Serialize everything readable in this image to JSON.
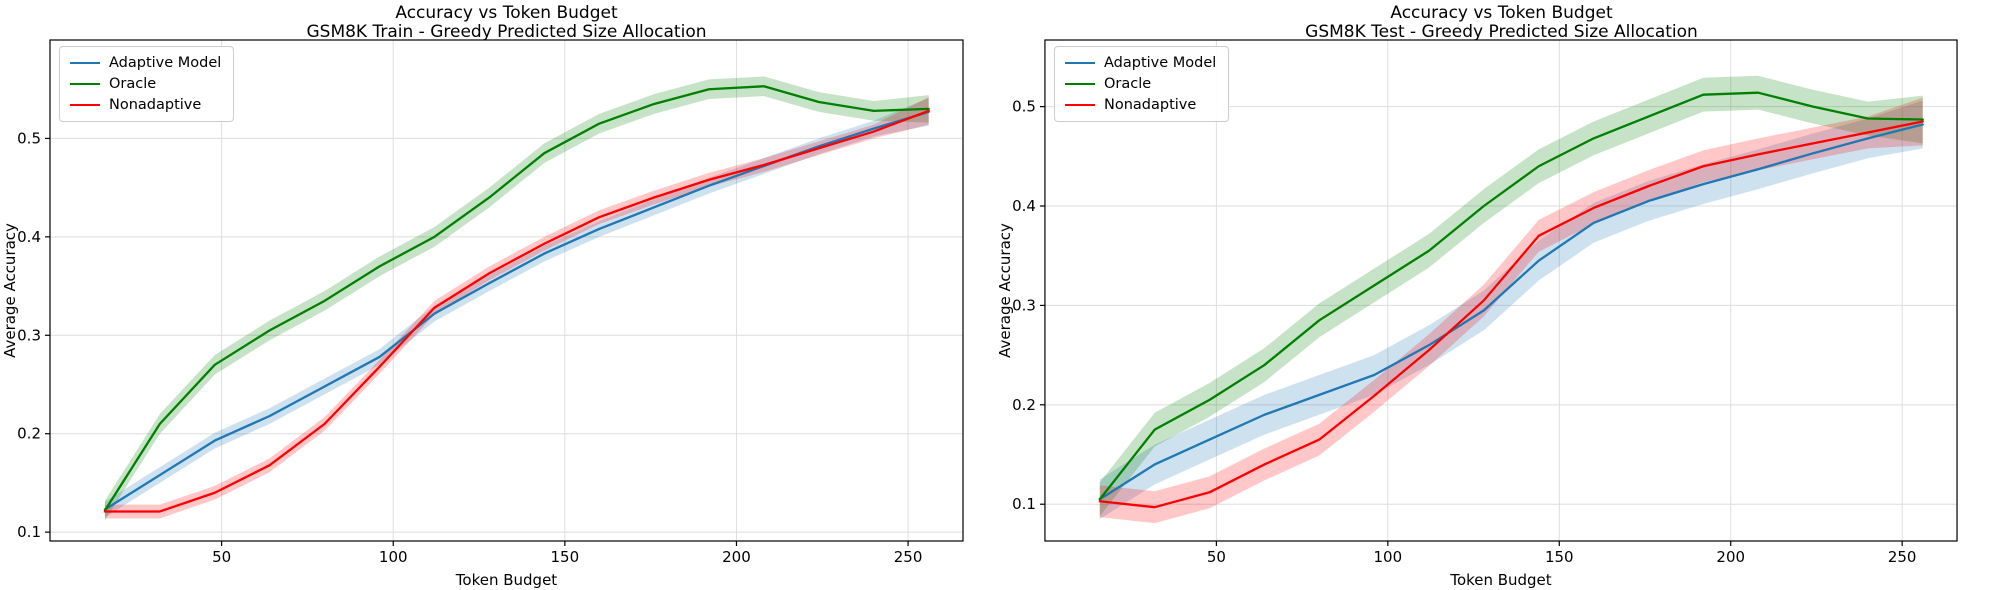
{
  "figure": {
    "background": "#ffffff",
    "grid_color": "#dedede",
    "spine_color": "#000000",
    "text_color": "#000000"
  },
  "chart_data": [
    {
      "type": "line",
      "title": "Accuracy vs Token Budget",
      "subtitle": "GSM8K Train - Greedy Predicted Size Allocation",
      "xlabel": "Token Budget",
      "ylabel": "Average Accuracy",
      "x": [
        16,
        32,
        48,
        64,
        80,
        96,
        112,
        128,
        144,
        160,
        176,
        192,
        208,
        224,
        240,
        256
      ],
      "xticks": [
        50,
        100,
        150,
        200,
        250
      ],
      "yticks": [
        0.1,
        0.2,
        0.3,
        0.4,
        0.5
      ],
      "xlim": [
        0,
        266
      ],
      "ylim": [
        0.091,
        0.6
      ],
      "grid": true,
      "legend_position": "upper-left",
      "series": [
        {
          "name": "Adaptive Model",
          "color": "#1f77b4",
          "band_halfwidth": 0.008,
          "band_end_halfwidth": 0.014,
          "values": [
            0.123,
            0.158,
            0.193,
            0.218,
            0.248,
            0.278,
            0.322,
            0.353,
            0.383,
            0.408,
            0.43,
            0.452,
            0.472,
            0.492,
            0.51,
            0.527
          ]
        },
        {
          "name": "Oracle",
          "color": "#008000",
          "band_halfwidth": 0.01,
          "band_end_halfwidth": 0.014,
          "values": [
            0.122,
            0.21,
            0.27,
            0.305,
            0.335,
            0.37,
            0.4,
            0.44,
            0.485,
            0.515,
            0.535,
            0.55,
            0.553,
            0.537,
            0.528,
            0.53
          ]
        },
        {
          "name": "Nonadaptive",
          "color": "#ff0000",
          "band_halfwidth": 0.007,
          "band_end_halfwidth": 0.014,
          "values": [
            0.121,
            0.121,
            0.14,
            0.168,
            0.21,
            0.268,
            0.328,
            0.363,
            0.393,
            0.42,
            0.44,
            0.458,
            0.473,
            0.49,
            0.507,
            0.528
          ]
        }
      ]
    },
    {
      "type": "line",
      "title": "Accuracy vs Token Budget",
      "subtitle": "GSM8K Test - Greedy Predicted Size Allocation",
      "xlabel": "Token Budget",
      "ylabel": "Average Accuracy",
      "x": [
        16,
        32,
        48,
        64,
        80,
        96,
        112,
        128,
        144,
        160,
        176,
        192,
        208,
        224,
        240,
        256
      ],
      "xticks": [
        50,
        100,
        150,
        200,
        250
      ],
      "yticks": [
        0.1,
        0.2,
        0.3,
        0.4,
        0.5
      ],
      "xlim": [
        0,
        266
      ],
      "ylim": [
        0.063,
        0.567
      ],
      "grid": true,
      "legend_position": "upper-left",
      "series": [
        {
          "name": "Adaptive Model",
          "color": "#1f77b4",
          "band_halfwidth": 0.02,
          "band_end_halfwidth": 0.024,
          "values": [
            0.105,
            0.14,
            0.165,
            0.19,
            0.21,
            0.23,
            0.26,
            0.295,
            0.345,
            0.383,
            0.405,
            0.422,
            0.437,
            0.453,
            0.468,
            0.482
          ]
        },
        {
          "name": "Oracle",
          "color": "#008000",
          "band_halfwidth": 0.017,
          "band_end_halfwidth": 0.024,
          "values": [
            0.105,
            0.175,
            0.205,
            0.24,
            0.285,
            0.32,
            0.355,
            0.4,
            0.44,
            0.468,
            0.49,
            0.512,
            0.514,
            0.5,
            0.488,
            0.487
          ]
        },
        {
          "name": "Nonadaptive",
          "color": "#ff0000",
          "band_halfwidth": 0.016,
          "band_end_halfwidth": 0.024,
          "values": [
            0.103,
            0.097,
            0.112,
            0.14,
            0.165,
            0.209,
            0.255,
            0.305,
            0.37,
            0.398,
            0.42,
            0.44,
            0.452,
            0.463,
            0.474,
            0.485
          ]
        }
      ]
    }
  ]
}
